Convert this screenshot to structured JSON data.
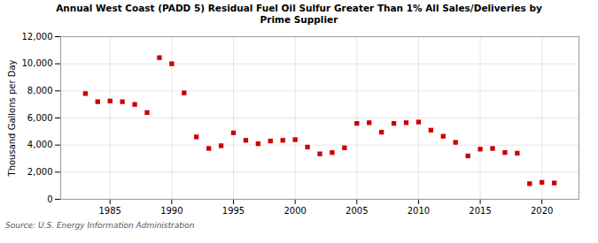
{
  "chart_data": {
    "type": "scatter",
    "title": "Annual West Coast (PADD 5) Residual Fuel Oil Sulfur Greater Than 1% All Sales/Deliveries by\nPrime Supplier",
    "ylabel": "Thousand Gallons per Day",
    "source": "Source: U.S. Energy Information Administration",
    "x": [
      1983,
      1984,
      1985,
      1986,
      1987,
      1988,
      1989,
      1990,
      1991,
      1992,
      1993,
      1994,
      1995,
      1996,
      1997,
      1998,
      1999,
      2000,
      2001,
      2002,
      2003,
      2004,
      2005,
      2006,
      2007,
      2008,
      2009,
      2010,
      2011,
      2012,
      2013,
      2014,
      2015,
      2016,
      2017,
      2018,
      2019,
      2020,
      2021
    ],
    "values": [
      7800,
      7200,
      7250,
      7200,
      7000,
      6400,
      10450,
      10000,
      7850,
      4600,
      3750,
      3950,
      4900,
      4350,
      4100,
      4300,
      4350,
      4400,
      3850,
      3350,
      3450,
      3800,
      5600,
      5650,
      4950,
      5600,
      5650,
      5700,
      5100,
      4650,
      4200,
      3200,
      3700,
      3750,
      3450,
      3400,
      1150,
      1250,
      1200
    ],
    "color": "#cc0000",
    "marker": "square",
    "xlim": [
      1981,
      2023
    ],
    "ylim": [
      0,
      12000
    ],
    "xticks": [
      1985,
      1990,
      1995,
      2000,
      2005,
      2010,
      2015,
      2020
    ],
    "yticks": [
      0,
      {
        "value": 2000,
        "label": "2,000"
      },
      {
        "value": 4000,
        "label": "4,000"
      },
      {
        "value": 6000,
        "label": "6,000"
      },
      {
        "value": 8000,
        "label": "8,000"
      },
      {
        "value": 10000,
        "label": "10,000"
      },
      {
        "value": 12000,
        "label": "12,000"
      }
    ],
    "grid": true
  }
}
